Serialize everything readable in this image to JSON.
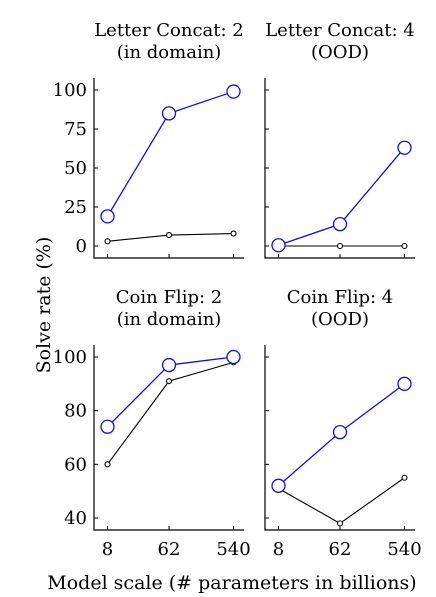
{
  "figure": {
    "xlabel": "Model scale (# parameters in billions)",
    "ylabel": "Solve rate (%)"
  },
  "chart_data": [
    {
      "type": "line",
      "title": [
        "Letter Concat: 2",
        "(in domain)"
      ],
      "x_categories": [
        "8",
        "62",
        "540"
      ],
      "ylim": [
        0,
        100
      ],
      "yticks": [
        0,
        25,
        50,
        75,
        100
      ],
      "show_ytick_labels": true,
      "show_xtick_labels": false,
      "series": [
        {
          "color": "#1010e0",
          "marker": "large-circle",
          "values": [
            19,
            85,
            99
          ]
        },
        {
          "color": "#000000",
          "marker": "small-circle",
          "values": [
            3,
            7,
            8
          ]
        }
      ]
    },
    {
      "type": "line",
      "title": [
        "Letter Concat: 4",
        "(OOD)"
      ],
      "x_categories": [
        "8",
        "62",
        "540"
      ],
      "ylim": [
        0,
        100
      ],
      "yticks": [
        0,
        25,
        50,
        75,
        100
      ],
      "show_ytick_labels": false,
      "show_xtick_labels": false,
      "series": [
        {
          "color": "#1010e0",
          "marker": "large-circle",
          "values": [
            0.5,
            14,
            63
          ]
        },
        {
          "color": "#000000",
          "marker": "small-circle",
          "values": [
            0,
            0,
            0
          ]
        }
      ]
    },
    {
      "type": "line",
      "title": [
        "Coin Flip: 2",
        "(in domain)"
      ],
      "x_categories": [
        "8",
        "62",
        "540"
      ],
      "ylim": [
        40,
        100
      ],
      "yticks": [
        40,
        60,
        80,
        100
      ],
      "show_ytick_labels": true,
      "show_xtick_labels": true,
      "series": [
        {
          "color": "#1010e0",
          "marker": "large-circle",
          "values": [
            74,
            97,
            100
          ]
        },
        {
          "color": "#000000",
          "marker": "small-circle",
          "values": [
            60,
            91,
            98
          ]
        }
      ]
    },
    {
      "type": "line",
      "title": [
        "Coin Flip: 4",
        "(OOD)"
      ],
      "x_categories": [
        "8",
        "62",
        "540"
      ],
      "ylim": [
        40,
        100
      ],
      "yticks": [
        40,
        60,
        80,
        100
      ],
      "show_ytick_labels": false,
      "show_xtick_labels": true,
      "series": [
        {
          "color": "#1010e0",
          "marker": "large-circle",
          "values": [
            52,
            72,
            90
          ]
        },
        {
          "color": "#000000",
          "marker": "small-circle",
          "values": [
            51,
            38,
            55
          ]
        }
      ]
    }
  ]
}
